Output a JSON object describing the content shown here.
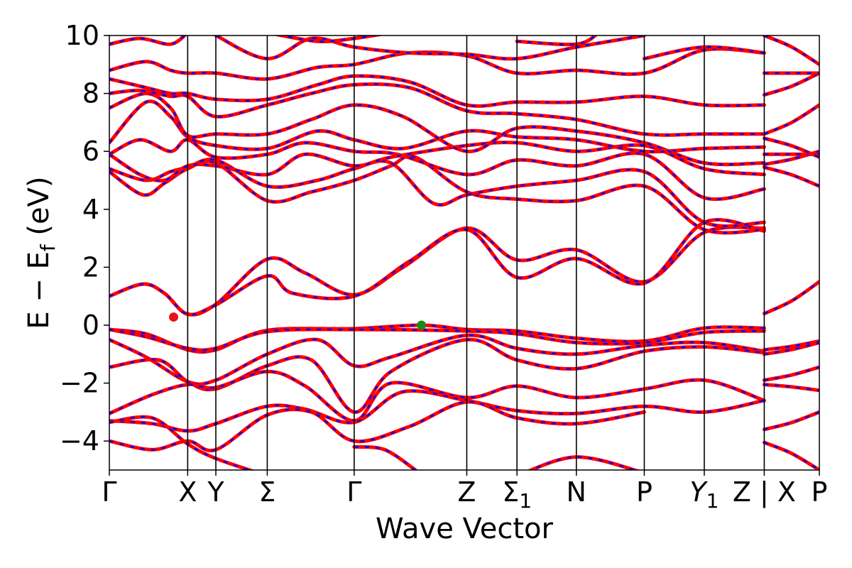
{
  "chart_data": {
    "type": "line",
    "title": "",
    "xlabel": "Wave Vector",
    "ylabel": "E − E_f (eV)",
    "ylabel_parts": {
      "main": "E  −  E",
      "sub": "f",
      "unit": " (eV)"
    },
    "ylim": [
      -5,
      10
    ],
    "yticks": [
      -4,
      -2,
      0,
      2,
      4,
      6,
      8,
      10
    ],
    "ytick_labels": [
      "−4",
      "−2",
      "0",
      "2",
      "4",
      "6",
      "8",
      "10"
    ],
    "xlim": [
      0,
      9.0
    ],
    "grid": false,
    "high_symmetry_points": [
      {
        "label": "Γ",
        "x": 0.0
      },
      {
        "label": "X",
        "x": 1.28
      },
      {
        "label": "Y",
        "x": 1.74
      },
      {
        "label": "Σ",
        "x": 2.58
      },
      {
        "label": "Γ",
        "x": 4.0
      },
      {
        "label": "Z",
        "x": 5.84
      },
      {
        "label": "Σ",
        "sub": "1",
        "x": 6.66
      },
      {
        "label": "N",
        "x": 7.63
      },
      {
        "label": "P",
        "x": 8.74
      },
      {
        "label": "Y",
        "sub": "1",
        "italic": true,
        "x": 9.72
      },
      {
        "label": "Z | X",
        "x": 10.7
      },
      {
        "label": "P",
        "x": 11.6
      }
    ],
    "path_break_x": 10.7,
    "markers": [
      {
        "name": "CBM",
        "x": 1.05,
        "y": 0.28,
        "color": "#e8141a"
      },
      {
        "name": "VBM",
        "x": 5.1,
        "y": 0.0,
        "color": "#1a8a1a"
      }
    ],
    "series": [
      {
        "style": "dft",
        "color": "#ff0000"
      },
      {
        "style": "wannier",
        "color": "#0000ff"
      }
    ],
    "bands": [
      [
        [
          0,
          1.0
        ],
        [
          0.55,
          1.42
        ],
        [
          0.9,
          1.1
        ],
        [
          1.28,
          0.38
        ],
        [
          1.74,
          0.72
        ],
        [
          2.58,
          2.28
        ],
        [
          3.2,
          1.8
        ],
        [
          4.0,
          1.05
        ],
        [
          4.8,
          2.0
        ],
        [
          5.84,
          3.35
        ],
        [
          6.66,
          2.25
        ],
        [
          7.63,
          2.6
        ],
        [
          8.74,
          1.5
        ],
        [
          9.72,
          3.2
        ],
        [
          10.7,
          3.35
        ]
      ],
      [
        [
          0,
          1.0
        ],
        [
          0.55,
          1.42
        ],
        [
          0.9,
          1.1
        ],
        [
          1.28,
          0.38
        ],
        [
          1.74,
          0.7
        ],
        [
          2.58,
          1.7
        ],
        [
          3.0,
          1.1
        ],
        [
          4.0,
          1.0
        ],
        [
          4.9,
          2.2
        ],
        [
          5.84,
          3.3
        ],
        [
          6.66,
          1.65
        ],
        [
          7.63,
          2.3
        ],
        [
          8.74,
          1.45
        ],
        [
          9.72,
          3.55
        ],
        [
          10.7,
          3.25
        ]
      ],
      [
        [
          0,
          -0.15
        ],
        [
          0.6,
          -0.3
        ],
        [
          1.28,
          -0.85
        ],
        [
          1.74,
          -0.85
        ],
        [
          2.58,
          -0.18
        ],
        [
          4.0,
          -0.12
        ],
        [
          5.1,
          0.0
        ],
        [
          5.84,
          -0.15
        ],
        [
          6.66,
          -0.2
        ],
        [
          7.63,
          -0.45
        ],
        [
          8.74,
          -0.55
        ],
        [
          9.72,
          -0.1
        ],
        [
          10.7,
          -0.1
        ]
      ],
      [
        [
          0,
          -0.15
        ],
        [
          0.6,
          -0.4
        ],
        [
          1.28,
          -0.8
        ],
        [
          1.74,
          -0.8
        ],
        [
          2.58,
          -0.22
        ],
        [
          4.0,
          -0.15
        ],
        [
          5.84,
          -0.2
        ],
        [
          6.66,
          -0.3
        ],
        [
          7.63,
          -0.6
        ],
        [
          8.74,
          -0.6
        ],
        [
          9.72,
          -0.25
        ],
        [
          10.7,
          -0.2
        ]
      ],
      [
        [
          0,
          -0.5
        ],
        [
          0.6,
          -1.1
        ],
        [
          1.28,
          -1.95
        ],
        [
          1.74,
          -1.9
        ],
        [
          2.58,
          -1.0
        ],
        [
          3.4,
          -0.5
        ],
        [
          4.0,
          -1.4
        ],
        [
          4.6,
          -1.1
        ],
        [
          5.84,
          -0.35
        ],
        [
          6.66,
          -0.8
        ],
        [
          7.63,
          -1.0
        ],
        [
          8.74,
          -0.7
        ],
        [
          9.72,
          -0.6
        ],
        [
          10.7,
          -0.9
        ]
      ],
      [
        [
          0,
          -1.45
        ],
        [
          0.8,
          -1.2
        ],
        [
          1.28,
          -1.95
        ],
        [
          1.74,
          -2.2
        ],
        [
          2.58,
          -1.4
        ],
        [
          3.3,
          -1.2
        ],
        [
          4.0,
          -3.0
        ],
        [
          4.6,
          -1.6
        ],
        [
          5.84,
          -0.5
        ],
        [
          6.66,
          -1.2
        ],
        [
          7.63,
          -1.5
        ],
        [
          8.74,
          -0.9
        ],
        [
          9.72,
          -0.75
        ],
        [
          10.7,
          -0.95
        ]
      ],
      [
        [
          0,
          -3.05
        ],
        [
          0.7,
          -2.4
        ],
        [
          1.28,
          -2.05
        ],
        [
          1.74,
          -2.15
        ],
        [
          2.58,
          -1.6
        ],
        [
          3.2,
          -2.1
        ],
        [
          4.0,
          -3.3
        ],
        [
          4.6,
          -2.0
        ],
        [
          5.84,
          -2.5
        ],
        [
          6.66,
          -2.1
        ],
        [
          7.63,
          -2.5
        ],
        [
          8.74,
          -2.2
        ],
        [
          9.72,
          -1.9
        ],
        [
          10.7,
          -2.6
        ]
      ],
      [
        [
          0,
          -3.3
        ],
        [
          0.7,
          -3.4
        ],
        [
          1.28,
          -3.65
        ],
        [
          1.74,
          -3.4
        ],
        [
          2.58,
          -2.8
        ],
        [
          3.2,
          -2.9
        ],
        [
          4.0,
          -3.35
        ],
        [
          4.8,
          -2.3
        ],
        [
          5.84,
          -2.6
        ],
        [
          6.66,
          -2.95
        ],
        [
          7.63,
          -3.05
        ],
        [
          8.74,
          -2.8
        ],
        [
          9.72,
          -3.0
        ],
        [
          10.7,
          -2.6
        ]
      ],
      [
        [
          0,
          -4.0
        ],
        [
          0.7,
          -4.3
        ],
        [
          1.28,
          -4.0
        ],
        [
          1.74,
          -4.3
        ],
        [
          2.58,
          -3.1
        ],
        [
          3.3,
          -3.0
        ],
        [
          4.0,
          -4.0
        ],
        [
          4.9,
          -3.5
        ],
        [
          5.84,
          -2.65
        ],
        [
          6.66,
          -3.2
        ],
        [
          7.63,
          -3.4
        ],
        [
          8.74,
          -3.0
        ]
      ],
      [
        [
          0,
          -3.35
        ],
        [
          0.7,
          -3.2
        ],
        [
          1.28,
          -4.1
        ],
        [
          1.74,
          -4.6
        ],
        [
          2.58,
          -5.2
        ]
      ],
      [
        [
          4.0,
          -4.2
        ],
        [
          4.5,
          -4.3
        ],
        [
          5.0,
          -5.0
        ]
      ],
      [
        [
          6.66,
          -5.2
        ],
        [
          7.63,
          -4.55
        ],
        [
          8.74,
          -5.1
        ]
      ],
      [
        [
          0,
          5.3
        ],
        [
          0.55,
          4.5
        ],
        [
          0.9,
          4.9
        ],
        [
          1.28,
          5.4
        ],
        [
          1.74,
          5.6
        ],
        [
          2.58,
          4.3
        ],
        [
          3.3,
          4.6
        ],
        [
          4.0,
          5.0
        ],
        [
          4.6,
          5.5
        ],
        [
          5.0,
          5.8
        ],
        [
          5.84,
          4.6
        ],
        [
          6.66,
          4.35
        ],
        [
          7.63,
          4.3
        ],
        [
          8.74,
          4.8
        ],
        [
          9.72,
          3.3
        ],
        [
          10.7,
          3.3
        ]
      ],
      [
        [
          0,
          5.4
        ],
        [
          0.6,
          5.0
        ],
        [
          1.0,
          5.3
        ],
        [
          1.28,
          5.45
        ],
        [
          1.74,
          5.7
        ],
        [
          2.58,
          4.8
        ],
        [
          3.4,
          5.0
        ],
        [
          4.0,
          5.4
        ],
        [
          4.6,
          5.6
        ],
        [
          5.3,
          4.2
        ],
        [
          5.84,
          4.5
        ],
        [
          6.66,
          4.8
        ],
        [
          7.63,
          5.0
        ],
        [
          8.74,
          5.3
        ],
        [
          9.72,
          3.55
        ],
        [
          10.7,
          3.55
        ]
      ],
      [
        [
          0,
          5.9
        ],
        [
          0.5,
          6.4
        ],
        [
          1.0,
          6.0
        ],
        [
          1.28,
          6.4
        ],
        [
          1.74,
          5.8
        ],
        [
          2.58,
          5.9
        ],
        [
          3.2,
          6.3
        ],
        [
          4.0,
          6.0
        ],
        [
          4.7,
          5.9
        ],
        [
          5.84,
          5.2
        ],
        [
          6.66,
          5.7
        ],
        [
          7.63,
          5.5
        ],
        [
          8.74,
          5.9
        ],
        [
          9.72,
          4.4
        ],
        [
          10.7,
          4.7
        ]
      ],
      [
        [
          0,
          5.9
        ],
        [
          0.5,
          5.2
        ],
        [
          0.9,
          5.0
        ],
        [
          1.28,
          5.5
        ],
        [
          1.74,
          5.5
        ],
        [
          2.58,
          5.2
        ],
        [
          3.2,
          5.9
        ],
        [
          4.0,
          5.5
        ],
        [
          4.6,
          5.8
        ],
        [
          5.84,
          6.2
        ],
        [
          6.66,
          6.3
        ],
        [
          7.63,
          6.0
        ],
        [
          8.74,
          6.2
        ],
        [
          9.72,
          5.4
        ],
        [
          10.7,
          5.2
        ]
      ],
      [
        [
          0,
          6.3
        ],
        [
          0.6,
          7.7
        ],
        [
          1.0,
          7.2
        ],
        [
          1.28,
          6.5
        ],
        [
          1.74,
          6.2
        ],
        [
          2.58,
          6.1
        ],
        [
          3.4,
          6.7
        ],
        [
          4.0,
          6.4
        ],
        [
          4.8,
          6.1
        ],
        [
          5.84,
          6.7
        ],
        [
          6.66,
          6.5
        ],
        [
          7.63,
          6.4
        ],
        [
          8.74,
          6.0
        ],
        [
          9.72,
          6.1
        ],
        [
          10.7,
          6.15
        ]
      ],
      [
        [
          0,
          7.5
        ],
        [
          0.6,
          8.0
        ],
        [
          1.0,
          7.5
        ],
        [
          1.28,
          6.55
        ],
        [
          1.74,
          6.6
        ],
        [
          2.58,
          6.6
        ],
        [
          3.3,
          7.1
        ],
        [
          4.0,
          7.6
        ],
        [
          4.8,
          7.2
        ],
        [
          5.84,
          6.0
        ],
        [
          6.66,
          6.8
        ],
        [
          7.63,
          6.7
        ],
        [
          8.74,
          6.3
        ],
        [
          9.72,
          5.6
        ],
        [
          10.7,
          5.6
        ]
      ],
      [
        [
          0,
          8.0
        ],
        [
          0.5,
          8.1
        ],
        [
          1.0,
          7.9
        ],
        [
          1.28,
          7.9
        ],
        [
          1.74,
          7.2
        ],
        [
          2.58,
          7.6
        ],
        [
          3.3,
          8.0
        ],
        [
          4.0,
          8.3
        ],
        [
          4.9,
          8.2
        ],
        [
          5.84,
          7.4
        ],
        [
          6.66,
          7.3
        ],
        [
          7.63,
          7.1
        ],
        [
          8.74,
          6.6
        ],
        [
          9.72,
          6.6
        ],
        [
          10.7,
          6.6
        ]
      ],
      [
        [
          0,
          8.5
        ],
        [
          0.6,
          8.2
        ],
        [
          1.0,
          8.0
        ],
        [
          1.28,
          8.0
        ],
        [
          1.74,
          7.8
        ],
        [
          2.58,
          7.8
        ],
        [
          3.4,
          8.3
        ],
        [
          4.0,
          8.6
        ],
        [
          4.9,
          8.4
        ],
        [
          5.84,
          7.6
        ],
        [
          6.66,
          7.7
        ],
        [
          7.63,
          7.7
        ],
        [
          8.74,
          7.9
        ],
        [
          9.72,
          7.6
        ],
        [
          10.7,
          7.6
        ]
      ],
      [
        [
          0,
          8.8
        ],
        [
          0.6,
          9.1
        ],
        [
          1.0,
          8.8
        ],
        [
          1.28,
          8.7
        ],
        [
          1.74,
          8.7
        ],
        [
          2.58,
          8.5
        ],
        [
          3.4,
          8.9
        ],
        [
          4.0,
          9.0
        ],
        [
          4.9,
          9.4
        ],
        [
          5.84,
          9.3
        ],
        [
          6.66,
          8.7
        ],
        [
          7.63,
          8.8
        ],
        [
          8.74,
          8.7
        ],
        [
          9.72,
          9.5
        ],
        [
          10.7,
          9.4
        ]
      ],
      [
        [
          0,
          9.7
        ],
        [
          0.5,
          9.9
        ],
        [
          1.0,
          9.7
        ],
        [
          1.28,
          10.1
        ]
      ],
      [
        [
          1.74,
          10.0
        ],
        [
          2.58,
          9.2
        ],
        [
          3.3,
          9.9
        ],
        [
          4.0,
          9.6
        ],
        [
          4.9,
          9.4
        ],
        [
          5.84,
          9.35
        ],
        [
          6.66,
          9.2
        ],
        [
          7.63,
          9.6
        ],
        [
          8.74,
          10.0
        ]
      ],
      [
        [
          2.58,
          10.1
        ],
        [
          3.4,
          9.8
        ],
        [
          4.0,
          9.9
        ],
        [
          4.6,
          10.1
        ]
      ],
      [
        [
          6.66,
          9.8
        ],
        [
          7.63,
          9.7
        ],
        [
          8.0,
          10.1
        ]
      ],
      [
        [
          8.74,
          9.2
        ],
        [
          9.72,
          9.6
        ],
        [
          10.7,
          9.4
        ]
      ]
    ]
  }
}
